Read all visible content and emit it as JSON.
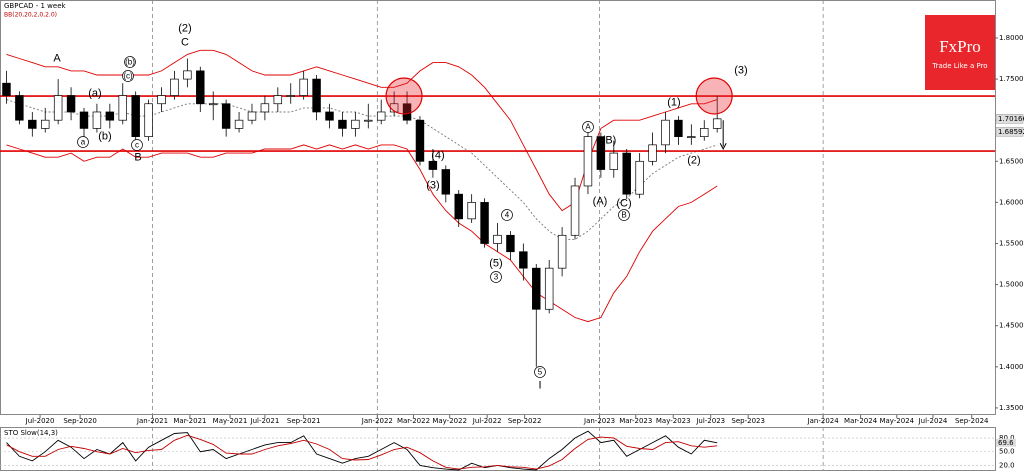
{
  "chart_data": {
    "type": "candlestick",
    "title": "GBPCAD - 1 week",
    "indicator_label": "BB(20,20,2,0,2.0)",
    "brand": "FxPro",
    "brand_tagline": "Trade Like a Pro",
    "xlim": [
      -0.5,
      76.5
    ],
    "xticks": [
      {
        "value": 2.6,
        "label": "Jul-2020"
      },
      {
        "value": 5.7,
        "label": "Sep-2020"
      },
      {
        "value": 11.3,
        "label": "Jan-2021"
      },
      {
        "value": 14.2,
        "label": "Mar-2021"
      },
      {
        "value": 17.3,
        "label": "May-2021"
      },
      {
        "value": 20.0,
        "label": "Jul-2021"
      },
      {
        "value": 23.0,
        "label": "Sep-2021"
      },
      {
        "value": 28.7,
        "label": "Jan-2022"
      },
      {
        "value": 31.5,
        "label": "Mar-2022"
      },
      {
        "value": 34.3,
        "label": "May-2022"
      },
      {
        "value": 37.2,
        "label": "Jul-2022"
      },
      {
        "value": 40.1,
        "label": "Sep-2022"
      },
      {
        "value": 45.9,
        "label": "Jan-2023"
      },
      {
        "value": 48.7,
        "label": "Mar-2023"
      },
      {
        "value": 51.6,
        "label": "May-2023"
      },
      {
        "value": 54.5,
        "label": "Jul-2023"
      },
      {
        "value": 57.4,
        "label": "Sep-2023"
      },
      {
        "value": 63.2,
        "label": "Jan-2024"
      },
      {
        "value": 66.1,
        "label": "Mar-2024"
      },
      {
        "value": 68.9,
        "label": "May-2024"
      },
      {
        "value": 71.7,
        "label": "Jul-2024"
      },
      {
        "value": 74.7,
        "label": "Sep-2024"
      }
    ],
    "year_lines": [
      11.3,
      28.7,
      45.9,
      63.2
    ],
    "ylim": [
      1.3414,
      1.8462
    ],
    "yticks": [
      {
        "value": 1.8,
        "label": "1.80000"
      },
      {
        "value": 1.75,
        "label": "1.75000"
      },
      {
        "value": 1.7,
        "label": "1.70000"
      },
      {
        "value": 1.65,
        "label": "1.65000"
      },
      {
        "value": 1.6,
        "label": "1.60000"
      },
      {
        "value": 1.55,
        "label": "1.55000"
      },
      {
        "value": 1.5,
        "label": "1.50000"
      },
      {
        "value": 1.45,
        "label": "1.45000"
      },
      {
        "value": 1.4,
        "label": "1.40000"
      },
      {
        "value": 1.35,
        "label": "1.35000"
      }
    ],
    "price_markers": [
      {
        "value": 1.70166,
        "label": "1.70166"
      },
      {
        "value": 1.68592,
        "label": "1.68592"
      }
    ],
    "levels": [
      1.7294,
      1.6625
    ],
    "level_color": "#e00000",
    "up_color": "#ffffff",
    "down_color": "#000000",
    "open": [
      1.745,
      1.73,
      1.7,
      1.69,
      1.7,
      1.73,
      1.71,
      1.69,
      1.71,
      1.7,
      1.73,
      1.68,
      1.72,
      1.73,
      1.75,
      1.76,
      1.72,
      1.72,
      1.69,
      1.7,
      1.71,
      1.72,
      1.73,
      1.73,
      1.75,
      1.71,
      1.7,
      1.69,
      1.7,
      1.7,
      1.71,
      1.72,
      1.7,
      1.65,
      1.64,
      1.61,
      1.58,
      1.6,
      1.55,
      1.56,
      1.54,
      1.52,
      1.47,
      1.52,
      1.56,
      1.62,
      1.68,
      1.64,
      1.66,
      1.61,
      1.65,
      1.67,
      1.7,
      1.68,
      1.68,
      1.69
    ],
    "high": [
      1.76,
      1.735,
      1.71,
      1.715,
      1.75,
      1.74,
      1.715,
      1.72,
      1.72,
      1.745,
      1.735,
      1.725,
      1.74,
      1.76,
      1.775,
      1.765,
      1.735,
      1.725,
      1.71,
      1.72,
      1.73,
      1.74,
      1.745,
      1.76,
      1.755,
      1.72,
      1.71,
      1.71,
      1.72,
      1.725,
      1.735,
      1.735,
      1.705,
      1.665,
      1.645,
      1.615,
      1.61,
      1.605,
      1.575,
      1.565,
      1.55,
      1.525,
      1.53,
      1.57,
      1.63,
      1.69,
      1.685,
      1.675,
      1.665,
      1.66,
      1.685,
      1.71,
      1.705,
      1.695,
      1.7,
      1.73
    ],
    "low": [
      1.72,
      1.695,
      1.68,
      1.685,
      1.695,
      1.7,
      1.68,
      1.685,
      1.69,
      1.695,
      1.67,
      1.675,
      1.71,
      1.725,
      1.74,
      1.71,
      1.7,
      1.68,
      1.685,
      1.695,
      1.7,
      1.71,
      1.72,
      1.725,
      1.7,
      1.69,
      1.68,
      1.68,
      1.69,
      1.695,
      1.705,
      1.695,
      1.645,
      1.63,
      1.6,
      1.57,
      1.575,
      1.545,
      1.54,
      1.53,
      1.505,
      1.4,
      1.465,
      1.51,
      1.555,
      1.61,
      1.63,
      1.63,
      1.605,
      1.605,
      1.645,
      1.66,
      1.67,
      1.67,
      1.675,
      1.685
    ],
    "close": [
      1.73,
      1.7,
      1.69,
      1.7,
      1.73,
      1.71,
      1.69,
      1.71,
      1.7,
      1.73,
      1.68,
      1.72,
      1.73,
      1.75,
      1.76,
      1.72,
      1.72,
      1.69,
      1.7,
      1.71,
      1.72,
      1.73,
      1.73,
      1.75,
      1.71,
      1.7,
      1.69,
      1.7,
      1.7,
      1.71,
      1.72,
      1.7,
      1.65,
      1.64,
      1.61,
      1.58,
      1.6,
      1.55,
      1.56,
      1.54,
      1.52,
      1.47,
      1.52,
      1.56,
      1.62,
      1.68,
      1.64,
      1.66,
      1.61,
      1.65,
      1.67,
      1.7,
      1.68,
      1.68,
      1.69,
      1.70166
    ],
    "series": [
      {
        "name": "BB upper",
        "color": "#e00000",
        "values": [
          1.78,
          1.775,
          1.77,
          1.765,
          1.765,
          1.76,
          1.76,
          1.755,
          1.755,
          1.755,
          1.755,
          1.755,
          1.76,
          1.77,
          1.78,
          1.785,
          1.785,
          1.78,
          1.77,
          1.76,
          1.755,
          1.755,
          1.755,
          1.76,
          1.765,
          1.76,
          1.755,
          1.75,
          1.745,
          1.74,
          1.74,
          1.745,
          1.76,
          1.77,
          1.77,
          1.765,
          1.755,
          1.74,
          1.72,
          1.7,
          1.67,
          1.64,
          1.61,
          1.59,
          1.6,
          1.65,
          1.69,
          1.7,
          1.7,
          1.7,
          1.705,
          1.71,
          1.715,
          1.72,
          1.72,
          1.725
        ]
      },
      {
        "name": "BB middle",
        "color": "#777777",
        "values": [
          1.725,
          1.72,
          1.715,
          1.71,
          1.71,
          1.71,
          1.705,
          1.705,
          1.705,
          1.71,
          1.705,
          1.705,
          1.71,
          1.715,
          1.72,
          1.72,
          1.72,
          1.72,
          1.715,
          1.71,
          1.71,
          1.71,
          1.71,
          1.715,
          1.715,
          1.715,
          1.71,
          1.71,
          1.705,
          1.705,
          1.705,
          1.705,
          1.7,
          1.69,
          1.68,
          1.67,
          1.66,
          1.645,
          1.63,
          1.615,
          1.6,
          1.58,
          1.565,
          1.555,
          1.555,
          1.565,
          1.58,
          1.595,
          1.605,
          1.62,
          1.635,
          1.645,
          1.655,
          1.66,
          1.665,
          1.67
        ]
      },
      {
        "name": "BB lower",
        "color": "#e00000",
        "values": [
          1.67,
          1.665,
          1.66,
          1.655,
          1.655,
          1.66,
          1.65,
          1.655,
          1.655,
          1.665,
          1.655,
          1.655,
          1.66,
          1.66,
          1.66,
          1.655,
          1.655,
          1.66,
          1.66,
          1.66,
          1.665,
          1.665,
          1.665,
          1.67,
          1.665,
          1.67,
          1.665,
          1.67,
          1.665,
          1.67,
          1.67,
          1.665,
          1.64,
          1.61,
          1.59,
          1.575,
          1.565,
          1.55,
          1.54,
          1.53,
          1.51,
          1.49,
          1.48,
          1.47,
          1.46,
          1.455,
          1.46,
          1.49,
          1.51,
          1.54,
          1.565,
          1.58,
          1.595,
          1.6,
          1.61,
          1.62
        ]
      }
    ],
    "annotations": [
      "A",
      "(a)",
      "(b)",
      "(c)",
      "(b)",
      "a",
      "c",
      "B",
      "(2)",
      "C",
      "(4)",
      "(3)",
      "4",
      "(5)",
      "3",
      "5",
      "I",
      "A",
      "(B)",
      "(A)",
      "(C)",
      "B",
      "(1)",
      "(2)",
      "(3)"
    ],
    "oscillator": {
      "title": "STO Slow(14,3)",
      "ylim": [
        10,
        102
      ],
      "yticks": [
        {
          "value": 80,
          "label": "80.0"
        },
        {
          "value": 50,
          "label": "50.0"
        },
        {
          "value": 20,
          "label": "20.0"
        }
      ],
      "current": {
        "value": 69.6,
        "label": "69.6"
      },
      "series": [
        {
          "name": "%K",
          "color": "#000000",
          "values": [
            70,
            40,
            30,
            50,
            75,
            60,
            35,
            55,
            45,
            70,
            30,
            60,
            75,
            90,
            92,
            50,
            55,
            35,
            45,
            55,
            65,
            70,
            70,
            85,
            45,
            35,
            25,
            35,
            40,
            55,
            70,
            55,
            20,
            15,
            12,
            10,
            25,
            15,
            20,
            15,
            12,
            10,
            35,
            55,
            80,
            95,
            70,
            75,
            40,
            55,
            70,
            85,
            60,
            45,
            75,
            69.6
          ]
        },
        {
          "name": "%D",
          "color": "#c00000",
          "values": [
            65,
            50,
            40,
            40,
            55,
            62,
            57,
            50,
            45,
            57,
            48,
            53,
            55,
            75,
            86,
            77,
            66,
            47,
            45,
            45,
            55,
            63,
            68,
            75,
            67,
            55,
            35,
            32,
            33,
            43,
            55,
            60,
            48,
            30,
            16,
            12,
            16,
            17,
            20,
            17,
            16,
            12,
            19,
            33,
            57,
            77,
            82,
            80,
            62,
            57,
            55,
            70,
            72,
            63,
            60,
            63
          ]
        }
      ]
    }
  }
}
